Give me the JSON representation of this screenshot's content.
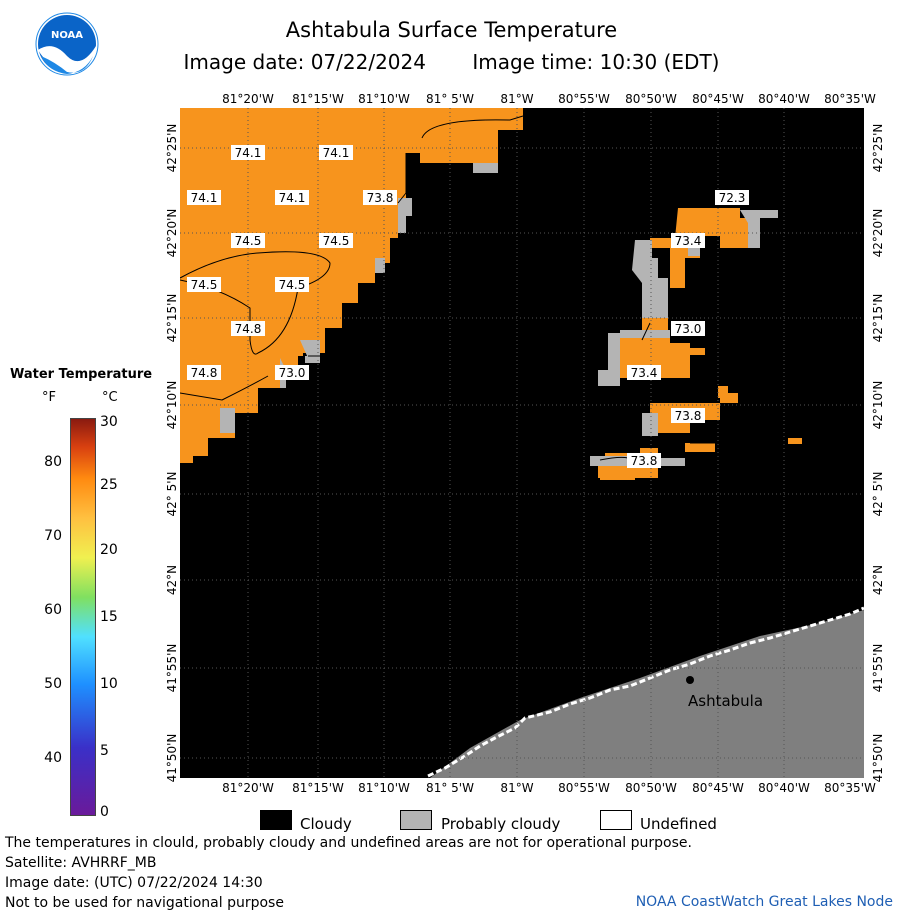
{
  "header": {
    "title": "Ashtabula Surface Temperature",
    "image_date_label": "Image date: 07/22/2024",
    "image_time_label": "Image time: 10:30 (EDT)",
    "logo_text": "NOAA"
  },
  "map": {
    "lon_labels": [
      "81°20'W",
      "81°15'W",
      "81°10'W",
      "81° 5'W",
      "81°W",
      "80°55'W",
      "80°50'W",
      "80°45'W",
      "80°40'W",
      "80°35'W"
    ],
    "lat_labels": [
      "42°25'N",
      "42°20'N",
      "42°15'N",
      "42°10'N",
      "42° 5'N",
      "42°N",
      "41°55'N",
      "41°50'N"
    ],
    "place_label": "Ashtabula",
    "temperature_labels": [
      "74.1",
      "74.1",
      "74.1",
      "74.1",
      "73.8",
      "74.5",
      "74.5",
      "74.5",
      "74.5",
      "74.8",
      "74.8",
      "73.0",
      "72.3",
      "73.4",
      "73.0",
      "73.4",
      "73.8",
      "73.8"
    ],
    "colors": {
      "water": "#f7941d",
      "cloudy": "#000000",
      "probably_cloudy": "#b4b4b4",
      "land": "#808080",
      "undefined": "#ffffff"
    }
  },
  "colorbar": {
    "title": "Water Temperature",
    "unit_f": "°F",
    "unit_c": "°C",
    "f_ticks": [
      "80",
      "70",
      "60",
      "50",
      "40"
    ],
    "c_ticks": [
      "30",
      "25",
      "20",
      "15",
      "10",
      "5",
      "0"
    ]
  },
  "legend": {
    "cloudy": "Cloudy",
    "probably_cloudy": "Probably cloudy",
    "undefined": "Undefined"
  },
  "footer": {
    "disclaimer": "The temperatures in clould, probably cloudy and undefined areas are not for operational purpose.",
    "satellite": "Satellite: AVHRRF_MB",
    "utc_date": "Image date: (UTC) 07/22/2024  14:30",
    "nav_note": "Not to be used for navigational purpose",
    "credit": "NOAA CoastWatch Great Lakes Node"
  }
}
